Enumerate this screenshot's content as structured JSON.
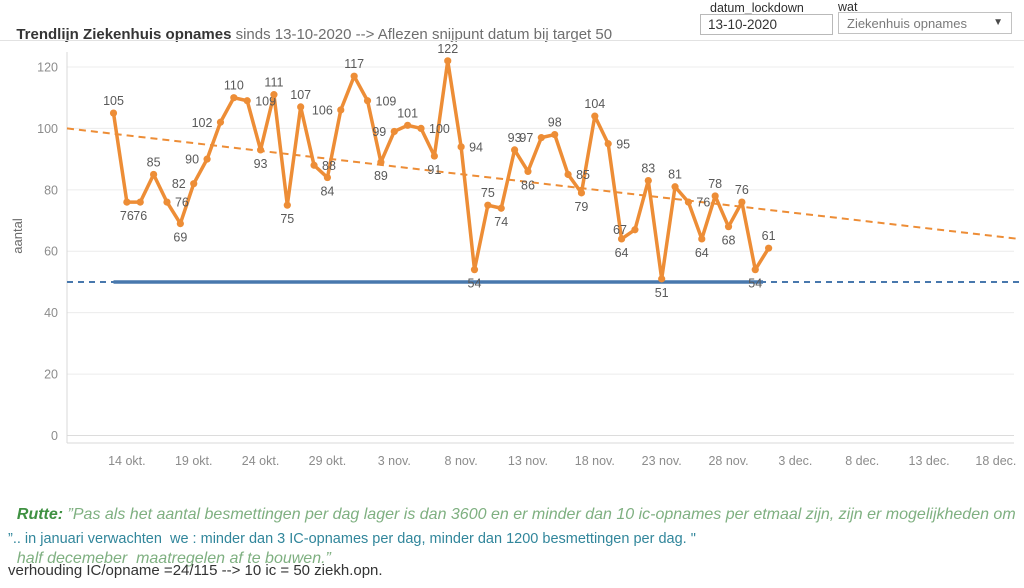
{
  "header": {
    "title": {
      "bold": "Trendlijn ",
      "bold_underline": "Ziekenhuis opnames",
      "gray1": " sinds 13-10-2020 --> Aflezen ",
      "gray_underline1": "snijpunt",
      "gray2": " datum bij target ",
      "gray_underline2": "50"
    },
    "datum_lockdown": {
      "label": "datum_lockdown",
      "value": "13-10-2020"
    },
    "wat": {
      "label": "wat",
      "selected": "Ziekenhuis opnames",
      "caret": "▼"
    }
  },
  "chart_data": {
    "type": "line",
    "series_name": "Ziekenhuis opnames",
    "ylabel": "aantal",
    "ylim": [
      0,
      120
    ],
    "yticks": [
      0,
      20,
      40,
      60,
      80,
      100,
      120
    ],
    "grid": true,
    "start_date": "13-10-2020",
    "values": [
      105,
      76,
      76,
      85,
      76,
      69,
      82,
      90,
      102,
      110,
      109,
      93,
      111,
      75,
      107,
      88,
      84,
      106,
      117,
      109,
      89,
      99,
      101,
      100,
      91,
      122,
      94,
      54,
      75,
      74,
      93,
      86,
      97,
      98,
      85,
      79,
      104,
      95,
      64,
      67,
      83,
      51,
      81,
      76,
      64,
      78,
      68,
      76,
      54,
      61
    ],
    "x_ticks": [
      {
        "label": "14 okt.",
        "day": 1
      },
      {
        "label": "19 okt.",
        "day": 6
      },
      {
        "label": "24 okt.",
        "day": 11
      },
      {
        "label": "29 okt.",
        "day": 16
      },
      {
        "label": "3 nov.",
        "day": 21
      },
      {
        "label": "8 nov.",
        "day": 26
      },
      {
        "label": "13 nov.",
        "day": 31
      },
      {
        "label": "18 nov.",
        "day": 36
      },
      {
        "label": "23 nov.",
        "day": 41
      },
      {
        "label": "28 nov.",
        "day": 46
      },
      {
        "label": "3 dec.",
        "day": 51
      },
      {
        "label": "8 dec.",
        "day": 56
      },
      {
        "label": "13 dec.",
        "day": 61
      },
      {
        "label": "18 dec.",
        "day": 66
      }
    ],
    "trendline": {
      "start_value": 100,
      "end_value": 64,
      "style": "dashed",
      "color": "#ED8D36"
    },
    "target_line": {
      "value": 50,
      "color": "#4878AD",
      "dashed_full_width": true,
      "solid_over_data_range": true
    },
    "colors": {
      "line": "#ED8D36",
      "marker": "#ED8D36",
      "data_label": "#595959",
      "tick_label": "#8c8c8c",
      "gridline": "#ececec",
      "axis": "#d8d8d8"
    }
  },
  "footer": {
    "rutte_label": "Rutte:",
    "rutte_quote_lines": [
      " ”Pas als het aantal besmettingen per dag lager is dan 3600 en er minder dan 10 ic-opnames per etmaal zijn, zijn er mogelijkheden om",
      "half decemeber  maatregelen af te bouwen.”"
    ],
    "januari_line": "”.. in januari verwachten  we : minder dan 3 IC-opnames per dag, minder dan 1200 besmettingen per dag. \"",
    "verhouding_line": "verhouding IC/opname =24/115 --> 10 ic = 50 ziekh.opn.",
    "colors": {
      "rutte_label": "#3f9142",
      "rutte_quote": "#7fb081",
      "januari": "#31869B",
      "verhouding": "#333333"
    }
  }
}
